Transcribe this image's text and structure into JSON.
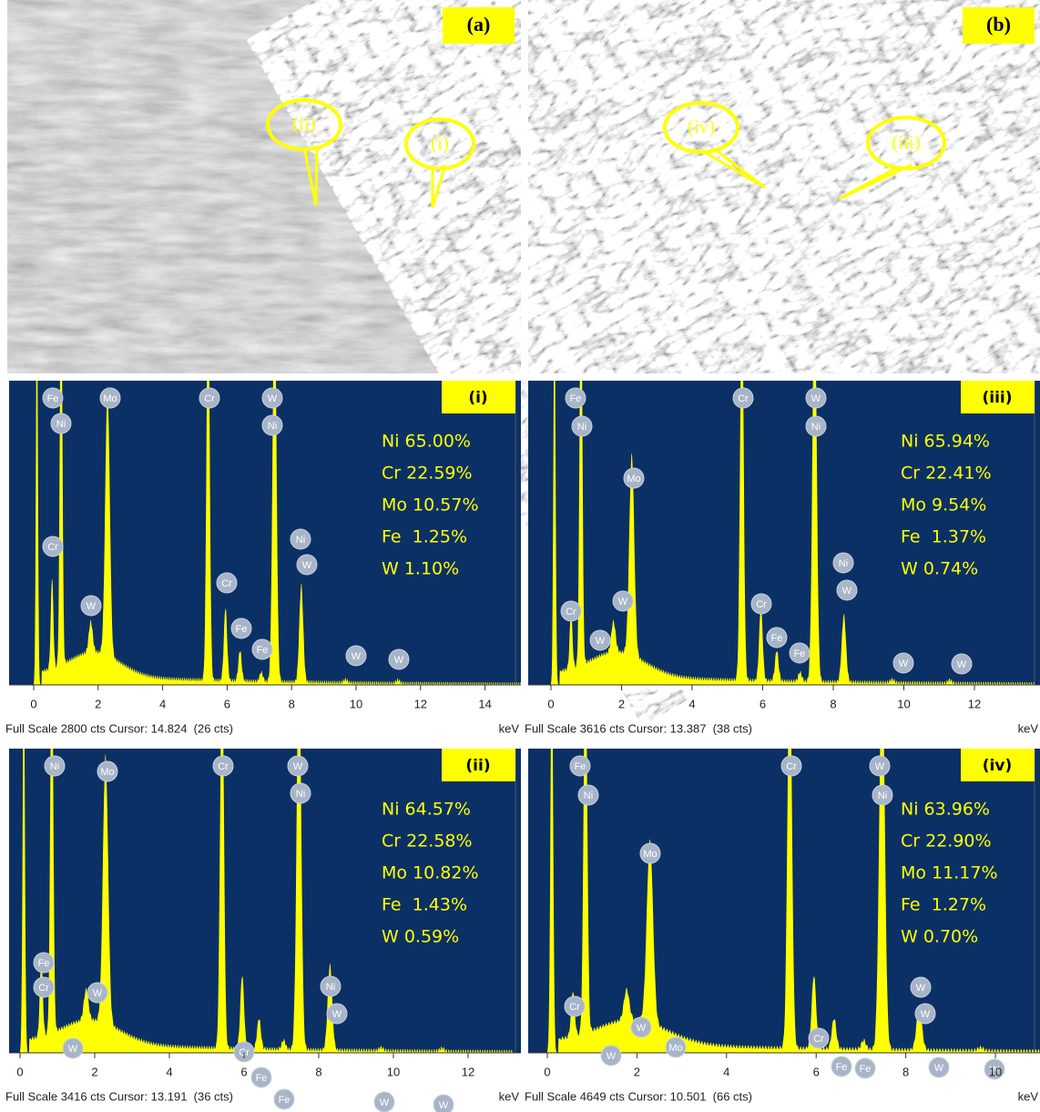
{
  "panels": [
    {
      "label": "(a)",
      "callouts": [
        "(ii)",
        "(i)"
      ]
    },
    {
      "label": "(b)",
      "callouts": [
        "(iv)",
        "(iii)"
      ]
    }
  ],
  "spectra": [
    {
      "label": "(i)",
      "composition": [
        "Ni 65.00%",
        "Cr 22.59%",
        "Mo 10.57%",
        "Fe  1.25%",
        "W 1.10%"
      ],
      "markers": [
        "Fe",
        "Ni",
        "Mo",
        "Cr",
        "W",
        "Ni",
        "Cr",
        "W",
        "Cr",
        "Fe",
        "Fe",
        "Ni",
        "W",
        "W",
        "W"
      ],
      "x_ticks": [
        0,
        2,
        4,
        6,
        8,
        10,
        12,
        14
      ],
      "footer": "Full Scale 2800 cts Cursor: 14.824  (26 cts)",
      "unit": "keV"
    },
    {
      "label": "(iii)",
      "composition": [
        "Ni 65.94%",
        "Cr 22.41%",
        "Mo 9.54%",
        "Fe  1.37%",
        "W 0.74%"
      ],
      "markers": [
        "Fe",
        "Ni",
        "Mo",
        "Cr",
        "W",
        "Ni",
        "Ni",
        "W",
        "Cr",
        "W",
        "W",
        "Cr",
        "Fe",
        "Fe",
        "W",
        "W"
      ],
      "x_ticks": [
        0,
        2,
        4,
        6,
        8,
        10,
        12
      ],
      "footer": "Full Scale 3616 cts Cursor: 13.387  (38 cts)",
      "unit": "keV"
    },
    {
      "label": "(ii)",
      "composition": [
        "Ni 64.57%",
        "Cr 22.58%",
        "Mo 10.82%",
        "Fe  1.43%",
        "W 0.59%"
      ],
      "markers": [
        "Ni",
        "Mo",
        "Cr",
        "W",
        "Ni",
        "Fe",
        "Cr",
        "W",
        "W",
        "Cr",
        "Fe",
        "Fe",
        "Ni",
        "W",
        "W",
        "W"
      ],
      "x_ticks": [
        0,
        2,
        4,
        6,
        8,
        10,
        12
      ],
      "footer": "Full Scale 3416 cts Cursor: 13.191  (36 cts)",
      "unit": "keV"
    },
    {
      "label": "(iv)",
      "composition": [
        "Ni 63.96%",
        "Cr 22.90%",
        "Mo 11.17%",
        "Fe  1.27%",
        "W 0.70%"
      ],
      "markers": [
        "Fe",
        "Ni",
        "Mo",
        "Cr",
        "W",
        "Ni",
        "W",
        "W",
        "Cr",
        "W",
        "W",
        "Mo",
        "Cr",
        "Fe",
        "Fe",
        "W",
        "W"
      ],
      "x_ticks": [
        0,
        2,
        4,
        6,
        8,
        10
      ],
      "footer": "Full Scale 4649 cts Cursor: 10.501  (66 cts)",
      "unit": "keV"
    }
  ]
}
